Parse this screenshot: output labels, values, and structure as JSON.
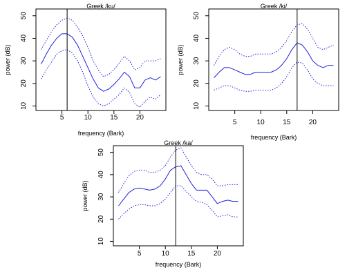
{
  "chart_data": [
    {
      "type": "line",
      "title": "Greek /ku/",
      "xlabel": "frequency (Bark)",
      "ylabel": "power (dB)",
      "xlim": [
        0,
        25
      ],
      "ylim": [
        8,
        53
      ],
      "x_ticks": [
        5,
        10,
        15,
        20
      ],
      "y_ticks": [
        10,
        20,
        30,
        40,
        50
      ],
      "vline": 6,
      "x": [
        1,
        2,
        3,
        4,
        5,
        6,
        7,
        8,
        9,
        10,
        11,
        12,
        13,
        14,
        15,
        16,
        17,
        18,
        19,
        20,
        21,
        22,
        23,
        24
      ],
      "series": [
        {
          "line": "dotted",
          "color": "#1f1fe0",
          "values": [
            35,
            39,
            43,
            46,
            48,
            49,
            48,
            45,
            41,
            36,
            30,
            26,
            23,
            24,
            26,
            29,
            32,
            30,
            26,
            27,
            30,
            30,
            30,
            31
          ]
        },
        {
          "line": "solid",
          "color": "#1f1fe0",
          "values": [
            28.5,
            33,
            37,
            40,
            42,
            42,
            40.5,
            37,
            32,
            27,
            22,
            18,
            16.5,
            17.5,
            19.5,
            22,
            25,
            23,
            18,
            18,
            21.5,
            22.5,
            21.5,
            23
          ]
        },
        {
          "line": "dotted",
          "color": "#1f1fe0",
          "values": [
            22,
            26,
            29.5,
            33,
            34.5,
            35,
            33.5,
            30,
            25,
            19,
            14,
            11,
            10,
            11,
            13,
            15,
            18,
            16,
            11,
            9.5,
            12,
            14,
            13,
            15
          ]
        }
      ]
    },
    {
      "type": "line",
      "title": "Greek /ki/",
      "xlabel": "frequency (Bark)",
      "ylabel": "power (dB)",
      "xlim": [
        0,
        25
      ],
      "ylim": [
        8,
        53
      ],
      "x_ticks": [
        5,
        10,
        15,
        20
      ],
      "y_ticks": [
        10,
        20,
        30,
        40,
        50
      ],
      "vline": 17,
      "x": [
        1,
        2,
        3,
        4,
        5,
        6,
        7,
        8,
        9,
        10,
        11,
        12,
        13,
        14,
        15,
        16,
        17,
        18,
        19,
        20,
        21,
        22,
        23,
        24
      ],
      "series": [
        {
          "line": "dotted",
          "color": "#1f1fe0",
          "values": [
            28,
            32,
            35,
            36,
            35,
            33,
            32,
            32,
            33,
            33,
            33,
            33,
            34,
            36,
            39,
            43,
            46,
            46.5,
            44,
            40,
            36,
            35,
            36,
            37
          ]
        },
        {
          "line": "solid",
          "color": "#1f1fe0",
          "values": [
            22.5,
            25,
            27,
            27,
            26,
            25,
            24,
            24,
            25,
            25,
            25,
            25,
            26,
            28,
            31,
            35,
            38,
            37,
            34,
            30,
            28,
            27,
            28,
            28
          ]
        },
        {
          "line": "dotted",
          "color": "#1f1fe0",
          "values": [
            17,
            18,
            19,
            19,
            18,
            17,
            16.5,
            16.5,
            17,
            17,
            17,
            17,
            18,
            20,
            23,
            27,
            29.5,
            29,
            26,
            22,
            20,
            19,
            19,
            19
          ]
        }
      ]
    },
    {
      "type": "line",
      "title": "Greek /ka/",
      "xlabel": "frequency (Bark)",
      "ylabel": "power (dB)",
      "xlim": [
        0,
        25
      ],
      "ylim": [
        8,
        53
      ],
      "x_ticks": [
        5,
        10,
        15,
        20
      ],
      "y_ticks": [
        10,
        20,
        30,
        40,
        50
      ],
      "vline": 12,
      "x": [
        1,
        2,
        3,
        4,
        5,
        6,
        7,
        8,
        9,
        10,
        11,
        12,
        13,
        14,
        15,
        16,
        17,
        18,
        19,
        20,
        21,
        22,
        23,
        24
      ],
      "series": [
        {
          "line": "dotted",
          "color": "#1f1fe0",
          "values": [
            32,
            36,
            39.5,
            41.5,
            42,
            42,
            41,
            41,
            42,
            44,
            48,
            51,
            52,
            48,
            44,
            41,
            40,
            40,
            38,
            35,
            35,
            35.5,
            35.5,
            35.5
          ]
        },
        {
          "line": "solid",
          "color": "#1f1fe0",
          "values": [
            26,
            29,
            32,
            33.5,
            34,
            33.5,
            33,
            33.5,
            35,
            38,
            42,
            43.5,
            44,
            40,
            36,
            33,
            33,
            33,
            30,
            27,
            28,
            28.5,
            28,
            28
          ]
        },
        {
          "line": "dotted",
          "color": "#1f1fe0",
          "values": [
            20,
            22.5,
            24.5,
            26,
            26.5,
            26.5,
            26,
            26,
            27,
            29,
            32,
            35,
            35,
            32.5,
            30,
            28,
            27.5,
            26.5,
            24,
            21,
            21.5,
            22,
            21,
            21
          ]
        }
      ]
    }
  ]
}
